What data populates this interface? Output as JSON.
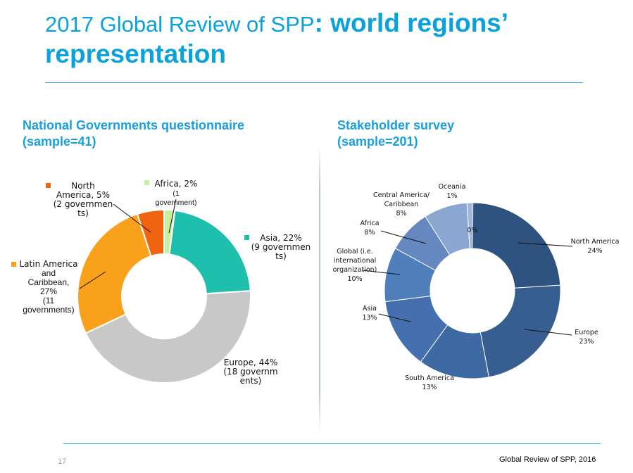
{
  "slide": {
    "title_regular": "2017 Global Review of SPP",
    "title_bold": ": world regions’",
    "title_line2": "representation",
    "page_number": "17",
    "footer": "Global Review of SPP, 2016"
  },
  "chart_data": [
    {
      "type": "donut",
      "title_lines": [
        "National Governments questionnaire",
        "(sample=41)"
      ],
      "categories": [
        "Africa",
        "Asia",
        "Europe",
        "Latin America and Caribbean",
        "North America"
      ],
      "values": [
        2,
        22,
        44,
        27,
        5
      ],
      "colors": [
        "#c6f0a0",
        "#1fbfad",
        "#c8c8c8",
        "#f9a11b",
        "#f1640f"
      ],
      "labels": [
        {
          "lines": [
            "Africa, 2%",
            "(1",
            "government)"
          ]
        },
        {
          "lines": [
            "Asia, 22%",
            "(9 governmen",
            "ts)"
          ]
        },
        {
          "lines": [
            "Europe, 44%",
            "(18 governm",
            "ents)"
          ]
        },
        {
          "lines": [
            "Latin America",
            "and",
            "Caribbean,",
            "27%",
            "(11",
            "governments)"
          ]
        },
        {
          "lines": [
            "North",
            "America, 5%",
            "(2 governmen",
            "ts)"
          ]
        }
      ]
    },
    {
      "type": "donut",
      "title_lines": [
        "Stakeholder survey",
        "(sample=201)"
      ],
      "categories": [
        "North America",
        "Europe",
        "South America",
        "Asia",
        "Global (i.e. international organization)",
        "Africa",
        "Central America/ Caribbean",
        "Oceania",
        "(unlabeled)"
      ],
      "values": [
        24,
        23,
        13,
        13,
        10,
        8,
        8,
        1,
        0
      ],
      "colors": [
        "#2f5380",
        "#375e90",
        "#3d6aa2",
        "#456fae",
        "#5080bb",
        "#6688c0",
        "#8aa6d1",
        "#9eb6da",
        "#bfcde6"
      ],
      "labels": [
        {
          "lines": [
            "North America",
            "24%"
          ]
        },
        {
          "lines": [
            "Europe",
            "23%"
          ]
        },
        {
          "lines": [
            "South America",
            "13%"
          ]
        },
        {
          "lines": [
            "Asia",
            "13%"
          ]
        },
        {
          "lines": [
            "Global (i.e.",
            "international",
            "organization)",
            "10%"
          ]
        },
        {
          "lines": [
            "Africa",
            "8%"
          ]
        },
        {
          "lines": [
            "Central America/",
            "Caribbean",
            "8%"
          ]
        },
        {
          "lines": [
            "Oceania",
            "1%"
          ]
        },
        {
          "lines": [
            "0%"
          ]
        }
      ]
    }
  ]
}
